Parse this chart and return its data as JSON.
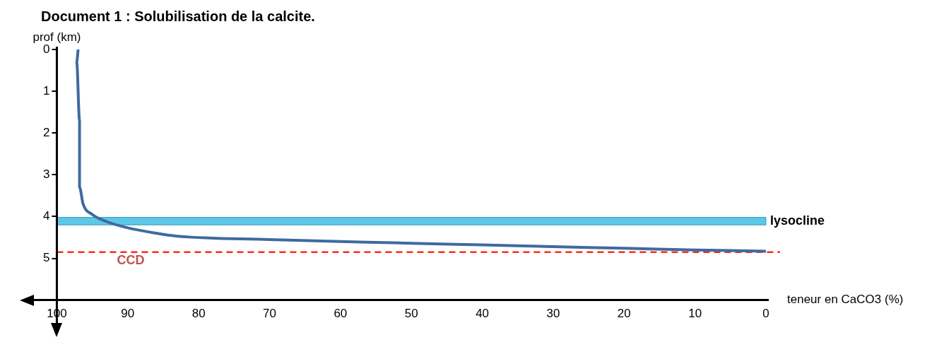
{
  "chart_data": {
    "type": "line",
    "title": "Document 1 : Solubilisation de la calcite.",
    "xlabel": "teneur en CaCO3 (%)",
    "ylabel": "prof (km)",
    "x": [
      97,
      97.2,
      96.8,
      96.8,
      96.3,
      95,
      93,
      90,
      86,
      83,
      70,
      60,
      50,
      40,
      30,
      20,
      10,
      0
    ],
    "series": [
      {
        "color": "#3f6aa0",
        "values": [
          0,
          0.3,
          1.7,
          3.3,
          3.7,
          3.95,
          4.12,
          4.27,
          4.4,
          4.47,
          4.55,
          4.6,
          4.64,
          4.68,
          4.72,
          4.76,
          4.8,
          4.83
        ]
      }
    ],
    "xlim": [
      100,
      0
    ],
    "xticks": [
      100,
      90,
      80,
      70,
      60,
      50,
      40,
      30,
      20,
      10,
      0
    ],
    "ylim": [
      6,
      0
    ],
    "yticks": [
      0,
      1,
      2,
      3,
      4,
      5
    ],
    "bands": [
      {
        "axis": "y",
        "from": 4.02,
        "to": 4.2,
        "label": "lysocline",
        "color": "#5bc8e8"
      }
    ],
    "ref_lines": [
      {
        "axis": "y",
        "value": 4.85,
        "label": "CCD",
        "color": "#ff2a1a",
        "line_style": "dashed"
      }
    ],
    "grid": false,
    "legend": false,
    "marker": "none",
    "line_style": "solid"
  }
}
